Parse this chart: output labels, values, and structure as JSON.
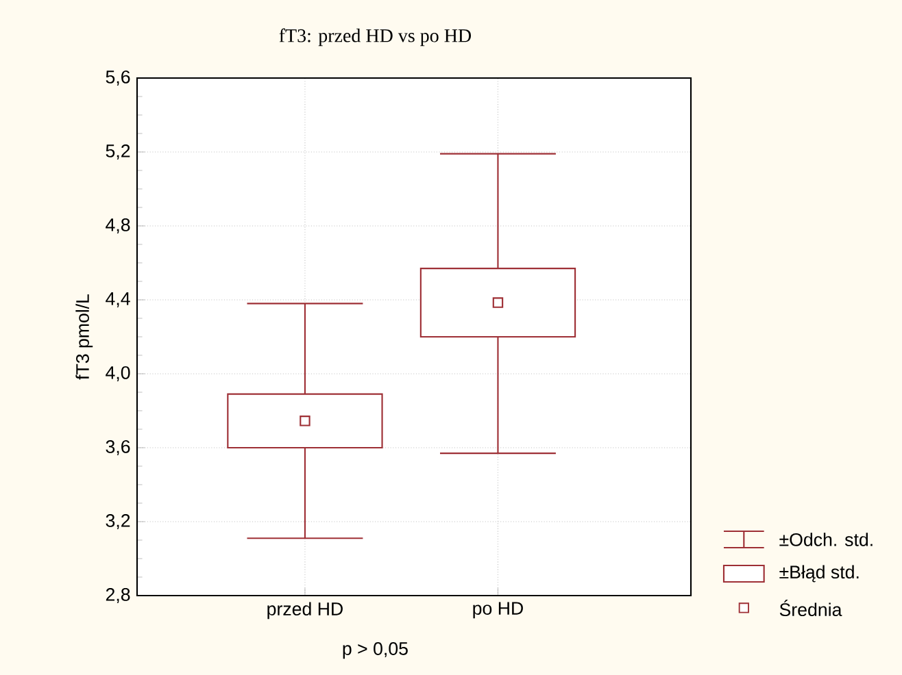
{
  "chart_data": {
    "type": "box",
    "title": "fT3: przed HD vs po HD",
    "xlabel": "p > 0,05",
    "ylabel": "fT3 pmol/L",
    "categories": [
      "przed HD",
      "po HD"
    ],
    "boxes": [
      {
        "low": 3.11,
        "q1": 3.6,
        "median": 3.745,
        "q3": 3.89,
        "high": 4.38
      },
      {
        "low": 3.57,
        "q1": 4.2,
        "median": 4.385,
        "q3": 4.57,
        "high": 5.19
      }
    ],
    "color": "#9e2f35",
    "ylim": [
      2.8,
      5.6
    ],
    "yticks": [
      {
        "value": 2.8,
        "label": "2,8"
      },
      {
        "value": 3.2,
        "label": "3,2"
      },
      {
        "value": 3.6,
        "label": "3,6"
      },
      {
        "value": 4.0,
        "label": "4,0"
      },
      {
        "value": 4.4,
        "label": "4,4"
      },
      {
        "value": 4.8,
        "label": "4,8"
      },
      {
        "value": 5.2,
        "label": "5,2"
      },
      {
        "value": 5.6,
        "label": "5,6"
      }
    ],
    "grid": true,
    "marker": "square",
    "annotations": [
      "±Odch. std.",
      "±Błąd std.",
      "Średnia"
    ]
  }
}
